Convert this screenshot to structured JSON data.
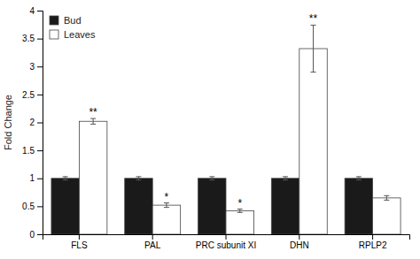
{
  "chart_data": {
    "type": "bar",
    "categories": [
      "FLS",
      "PAL",
      "PRC subunit XI",
      "DHN",
      "RPLP2"
    ],
    "series": [
      {
        "name": "Bud",
        "color": "#1a1a1a",
        "values": [
          1.0,
          1.0,
          1.0,
          1.0,
          1.0
        ],
        "errors": [
          0.03,
          0.03,
          0.03,
          0.03,
          0.03
        ]
      },
      {
        "name": "Leaves",
        "color": "#ffffff",
        "values": [
          2.02,
          0.52,
          0.42,
          3.32,
          0.65
        ],
        "errors": [
          0.05,
          0.04,
          0.03,
          0.42,
          0.04
        ],
        "significance": [
          "**",
          "*",
          "*",
          "**",
          null
        ]
      }
    ],
    "ylabel": "Fold Change",
    "ylim": [
      0,
      4
    ],
    "yticks": [
      0,
      0.5,
      1,
      1.5,
      2,
      2.5,
      3,
      3.5,
      4
    ],
    "legend": "upper left",
    "grid": false
  }
}
